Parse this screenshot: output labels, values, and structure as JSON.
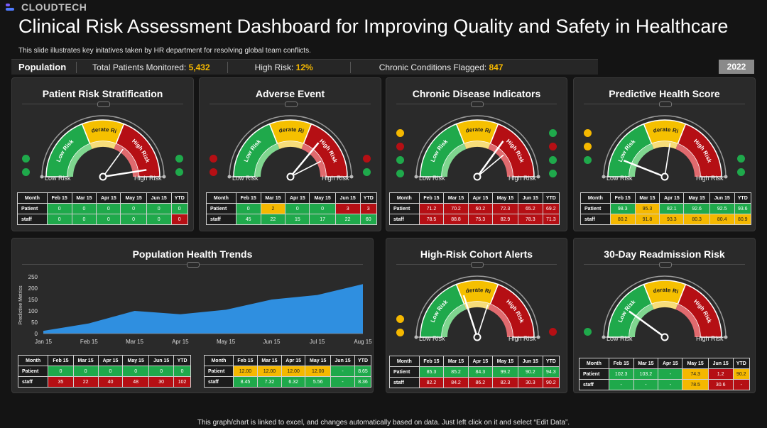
{
  "brand": "CLOUDTECH",
  "title": "Clinical Risk Assessment Dashboard for Improving Quality and Safety in Healthcare",
  "subtitle": "This slide illustrates key initatives taken by HR department for resolving global team conflicts.",
  "population": {
    "label": "Population",
    "total_label": "Total Patients Monitored:",
    "total": "5,432",
    "high_label": "High Risk:",
    "high": "12%",
    "chronic_label": "Chronic Conditions Flagged:",
    "chronic": "847"
  },
  "year": "2022",
  "gauge_labels": {
    "low": "Low Risk",
    "moderate": "Moderate Risk",
    "high": "High Risk"
  },
  "colors": {
    "green": "#1fa94b",
    "yellow": "#f5b800",
    "red": "#b50f14",
    "area": "#2f8fe0"
  },
  "panels": [
    {
      "title": "Patient Risk Stratification",
      "gauge": {
        "needle": 0.95,
        "needle2": 0.7
      },
      "left_dots": [
        "green",
        "green"
      ],
      "right_dots": [
        "green",
        "green"
      ],
      "table": {
        "headers": [
          "Month",
          "Feb 15",
          "Mar 15",
          "Apr 15",
          "May 15",
          "Jun 15",
          "YTD"
        ],
        "rows": [
          {
            "label": "Patient",
            "cells": [
              [
                "0",
                "g"
              ],
              [
                "0",
                "g"
              ],
              [
                "0",
                "g"
              ],
              [
                "0",
                "g"
              ],
              [
                "0",
                "g"
              ],
              [
                "0",
                "g"
              ]
            ]
          },
          {
            "label": "staff",
            "cells": [
              [
                "0",
                "g"
              ],
              [
                "0",
                "g"
              ],
              [
                "0",
                "g"
              ],
              [
                "0",
                "g"
              ],
              [
                "0",
                "g"
              ],
              [
                "0",
                "r"
              ]
            ]
          }
        ]
      }
    },
    {
      "title": "Adverse Event",
      "gauge": {
        "needle": 0.72,
        "needle2": 0.85
      },
      "left_dots": [
        "red",
        "red"
      ],
      "right_dots": [
        "red",
        "green"
      ],
      "table": {
        "headers": [
          "Month",
          "Feb 15",
          "Mar 15",
          "Apr 15",
          "May 15",
          "Jun 15",
          "YTD"
        ],
        "rows": [
          {
            "label": "Patient",
            "cells": [
              [
                "0",
                "g"
              ],
              [
                "2",
                "y"
              ],
              [
                "0",
                "g"
              ],
              [
                "0",
                "g"
              ],
              [
                "3",
                "r"
              ],
              [
                "3",
                "r"
              ]
            ]
          },
          {
            "label": "staff",
            "cells": [
              [
                "45",
                "g"
              ],
              [
                "22",
                "g"
              ],
              [
                "15",
                "g"
              ],
              [
                "17",
                "g"
              ],
              [
                "22",
                "g"
              ],
              [
                "60",
                "g"
              ]
            ]
          }
        ]
      }
    },
    {
      "title": "Chronic Disease Indicators",
      "gauge": {
        "needle": 0.7,
        "needle2": 0.78
      },
      "left_dots": [
        "yellow",
        "red",
        "green",
        "green"
      ],
      "right_dots": [
        "green",
        "red",
        "green",
        "green"
      ],
      "table": {
        "headers": [
          "Month",
          "Feb 15",
          "Mar 15",
          "Apr 15",
          "May 15",
          "Jun 15",
          "YTD"
        ],
        "rows": [
          {
            "label": "Patient",
            "cells": [
              [
                "71.2",
                "r"
              ],
              [
                "70.2",
                "r"
              ],
              [
                "60.2",
                "r"
              ],
              [
                "72.3",
                "r"
              ],
              [
                "65.2",
                "r"
              ],
              [
                "69.2",
                "r"
              ]
            ]
          },
          {
            "label": "staff",
            "cells": [
              [
                "78.5",
                "r"
              ],
              [
                "88.8",
                "r"
              ],
              [
                "75.3",
                "r"
              ],
              [
                "82.9",
                "r"
              ],
              [
                "78.3",
                "r"
              ],
              [
                "71.3",
                "r"
              ]
            ]
          }
        ]
      }
    },
    {
      "title": "Predictive Health Score",
      "gauge": {
        "needle": 0.12,
        "needle2": 0.55
      },
      "left_dots": [
        "yellow",
        "yellow",
        "green"
      ],
      "right_dots": [
        "green",
        "green"
      ],
      "table": {
        "headers": [
          "Month",
          "Feb 15",
          "Mar 15",
          "Apr 15",
          "May 15",
          "Jun 15",
          "YTD"
        ],
        "rows": [
          {
            "label": "Patient",
            "cells": [
              [
                "98.3",
                "g"
              ],
              [
                "95.3",
                "y"
              ],
              [
                "82.1",
                "g"
              ],
              [
                "92.6",
                "g"
              ],
              [
                "92.5",
                "g"
              ],
              [
                "93.6",
                "g"
              ]
            ]
          },
          {
            "label": "staff",
            "cells": [
              [
                "80.2",
                "y"
              ],
              [
                "91.8",
                "y"
              ],
              [
                "93.3",
                "y"
              ],
              [
                "80.3",
                "y"
              ],
              [
                "80.4",
                "y"
              ],
              [
                "80.9",
                "y"
              ]
            ]
          }
        ]
      }
    },
    {
      "title": "High-Risk Cohort Alerts",
      "gauge": {
        "needle": 0.4,
        "needle2": 0.6
      },
      "left_dots": [
        "yellow",
        "yellow"
      ],
      "right_dots": [
        "red"
      ],
      "table": {
        "headers": [
          "Month",
          "Feb 15",
          "Mar 15",
          "Apr 15",
          "May 15",
          "Jun 15",
          "YTD"
        ],
        "rows": [
          {
            "label": "Patient",
            "cells": [
              [
                "85.3",
                "g"
              ],
              [
                "85.2",
                "g"
              ],
              [
                "84.3",
                "g"
              ],
              [
                "99.2",
                "g"
              ],
              [
                "90.2",
                "g"
              ],
              [
                "94.3",
                "g"
              ]
            ]
          },
          {
            "label": "staff",
            "cells": [
              [
                "82.2",
                "r"
              ],
              [
                "84.2",
                "r"
              ],
              [
                "86.2",
                "r"
              ],
              [
                "82.3",
                "r"
              ],
              [
                "30.3",
                "r"
              ],
              [
                "90.2",
                "r"
              ]
            ]
          }
        ]
      }
    },
    {
      "title": "30-Day Readmission Risk",
      "gauge": {
        "needle": 0.2
      },
      "left_dots": [
        "green"
      ],
      "right_dots": [],
      "table": {
        "headers": [
          "Month",
          "Feb 15",
          "Mar 15",
          "Apr 15",
          "May 15",
          "Jun 15",
          "YTD"
        ],
        "rows": [
          {
            "label": "Patient",
            "cells": [
              [
                "102.3",
                "g"
              ],
              [
                "103.2",
                "g"
              ],
              [
                "-",
                "g"
              ],
              [
                "74.3",
                "y"
              ],
              [
                "1.2",
                "r"
              ],
              [
                "90.2",
                "y"
              ]
            ]
          },
          {
            "label": "staff",
            "cells": [
              [
                "-",
                "g"
              ],
              [
                "-",
                "g"
              ],
              [
                "-",
                "g"
              ],
              [
                "78.5",
                "y"
              ],
              [
                "30.6",
                "r"
              ],
              [
                "-",
                "r"
              ]
            ]
          }
        ]
      }
    }
  ],
  "trends": {
    "title": "Population Health Trends",
    "table1": {
      "headers": [
        "Month",
        "Feb 15",
        "Mar 15",
        "Apr 15",
        "May 15",
        "Jun 15",
        "YTD"
      ],
      "rows": [
        {
          "label": "Patient",
          "cells": [
            [
              "0",
              "g"
            ],
            [
              "0",
              "g"
            ],
            [
              "0",
              "g"
            ],
            [
              "0",
              "g"
            ],
            [
              "0",
              "g"
            ],
            [
              "0",
              "g"
            ]
          ]
        },
        {
          "label": "staff",
          "cells": [
            [
              "35",
              "r"
            ],
            [
              "22",
              "r"
            ],
            [
              "40",
              "r"
            ],
            [
              "48",
              "r"
            ],
            [
              "30",
              "r"
            ],
            [
              "102",
              "r"
            ]
          ]
        }
      ]
    },
    "table2": {
      "headers": [
        "Month",
        "Feb 15",
        "Mar 15",
        "Apr 15",
        "May 15",
        "Jun 15",
        "YTD"
      ],
      "rows": [
        {
          "label": "Patient",
          "cells": [
            [
              "12.00",
              "y"
            ],
            [
              "12.00",
              "y"
            ],
            [
              "12.00",
              "y"
            ],
            [
              "12.00",
              "y"
            ],
            [
              "-",
              "g"
            ],
            [
              "8.65",
              "g"
            ]
          ]
        },
        {
          "label": "staff",
          "cells": [
            [
              "8.45",
              "g"
            ],
            [
              "7.32",
              "g"
            ],
            [
              "6.32",
              "g"
            ],
            [
              "5.56",
              "g"
            ],
            [
              "-",
              "g"
            ],
            [
              "8.36",
              "g"
            ]
          ]
        }
      ]
    }
  },
  "chart_data": {
    "type": "area",
    "x": [
      "Jan 15",
      "Feb 15",
      "Mar 15",
      "Apr 15",
      "May 15",
      "Jun 15",
      "Jul 15",
      "Aug 15"
    ],
    "values": [
      12,
      45,
      100,
      85,
      105,
      150,
      170,
      218
    ],
    "ylabel": "Predictive Metrics",
    "ylim": [
      0,
      250
    ],
    "yticks": [
      0,
      50,
      100,
      150,
      200,
      250
    ]
  },
  "footer": "This graph/chart is linked to excel, and changes automatically based on data. Just left click on it and select “Edit Data”."
}
